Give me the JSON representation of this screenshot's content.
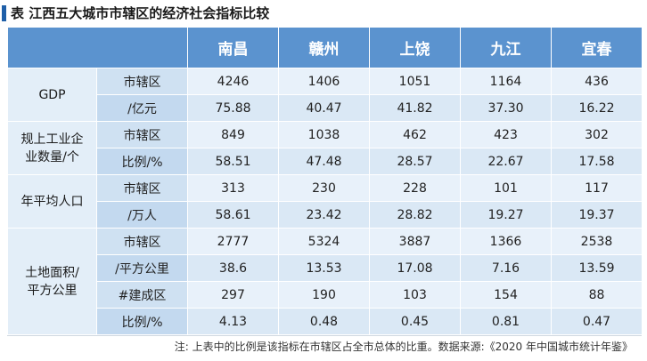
{
  "title": {
    "text": "表 江西五大城市市辖区的经济社会指标比较"
  },
  "table": {
    "columns": [
      "南昌",
      "赣州",
      "上饶",
      "九江",
      "宜春"
    ],
    "groups": [
      {
        "label": "GDP",
        "rows": [
          {
            "sub": "市辖区",
            "values": [
              "4246",
              "1406",
              "1051",
              "1164",
              "436"
            ]
          },
          {
            "sub": "/亿元",
            "values": [
              "75.88",
              "40.47",
              "41.82",
              "37.30",
              "16.22"
            ]
          }
        ]
      },
      {
        "label": "规上工业企业数量/个",
        "label_lines": [
          "规上工业企",
          "业数量/个"
        ],
        "rows": [
          {
            "sub": "市辖区",
            "values": [
              "849",
              "1038",
              "462",
              "423",
              "302"
            ]
          },
          {
            "sub": "比例/%",
            "values": [
              "58.51",
              "47.48",
              "28.57",
              "22.67",
              "17.58"
            ]
          }
        ]
      },
      {
        "label": "年平均人口",
        "rows": [
          {
            "sub": "市辖区",
            "values": [
              "313",
              "230",
              "228",
              "101",
              "117"
            ]
          },
          {
            "sub": "/万人",
            "values": [
              "58.61",
              "23.42",
              "28.82",
              "19.27",
              "19.37"
            ]
          }
        ]
      },
      {
        "label": "土地面积/平方公里",
        "label_lines": [
          "土地面积/",
          "平方公里"
        ],
        "rows": [
          {
            "sub": "市辖区",
            "values": [
              "2777",
              "5324",
              "3887",
              "1366",
              "2538"
            ]
          },
          {
            "sub": "/平方公里",
            "values": [
              "38.6",
              "13.53",
              "17.08",
              "7.16",
              "13.59"
            ]
          },
          {
            "sub": "#建成区",
            "values": [
              "297",
              "190",
              "103",
              "154",
              "88"
            ]
          },
          {
            "sub": "比例/%",
            "values": [
              "4.13",
              "0.48",
              "0.45",
              "0.81",
              "0.47"
            ]
          }
        ]
      }
    ]
  },
  "note": "注: 上表中的比例是该指标在市辖区占全市总体的比重。数据来源:《2020 年中国城市统计年鉴》",
  "colors": {
    "header_bg": "#5b93cf",
    "title_mark": "#1f5fa8",
    "cell_light": "#e8f1fa",
    "cell_alt": "#dae8f5"
  }
}
